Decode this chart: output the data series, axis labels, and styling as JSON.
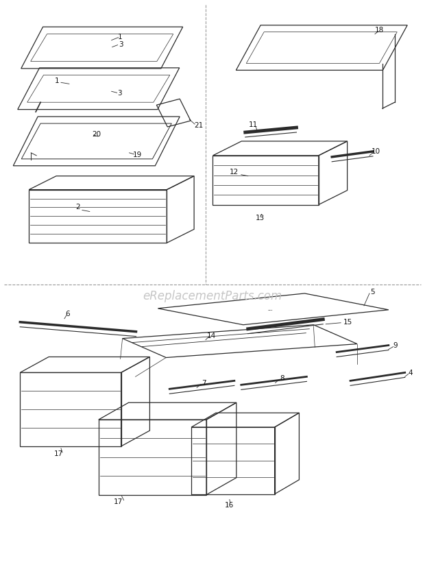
{
  "watermark": "eReplacementParts.com",
  "watermark_color": "#c0c0c0",
  "watermark_fontsize": 12,
  "bg_color": "#ffffff",
  "line_color": "#2a2a2a",
  "text_color": "#111111",
  "divider_color": "#999999",
  "label_fontsize": 7.5
}
